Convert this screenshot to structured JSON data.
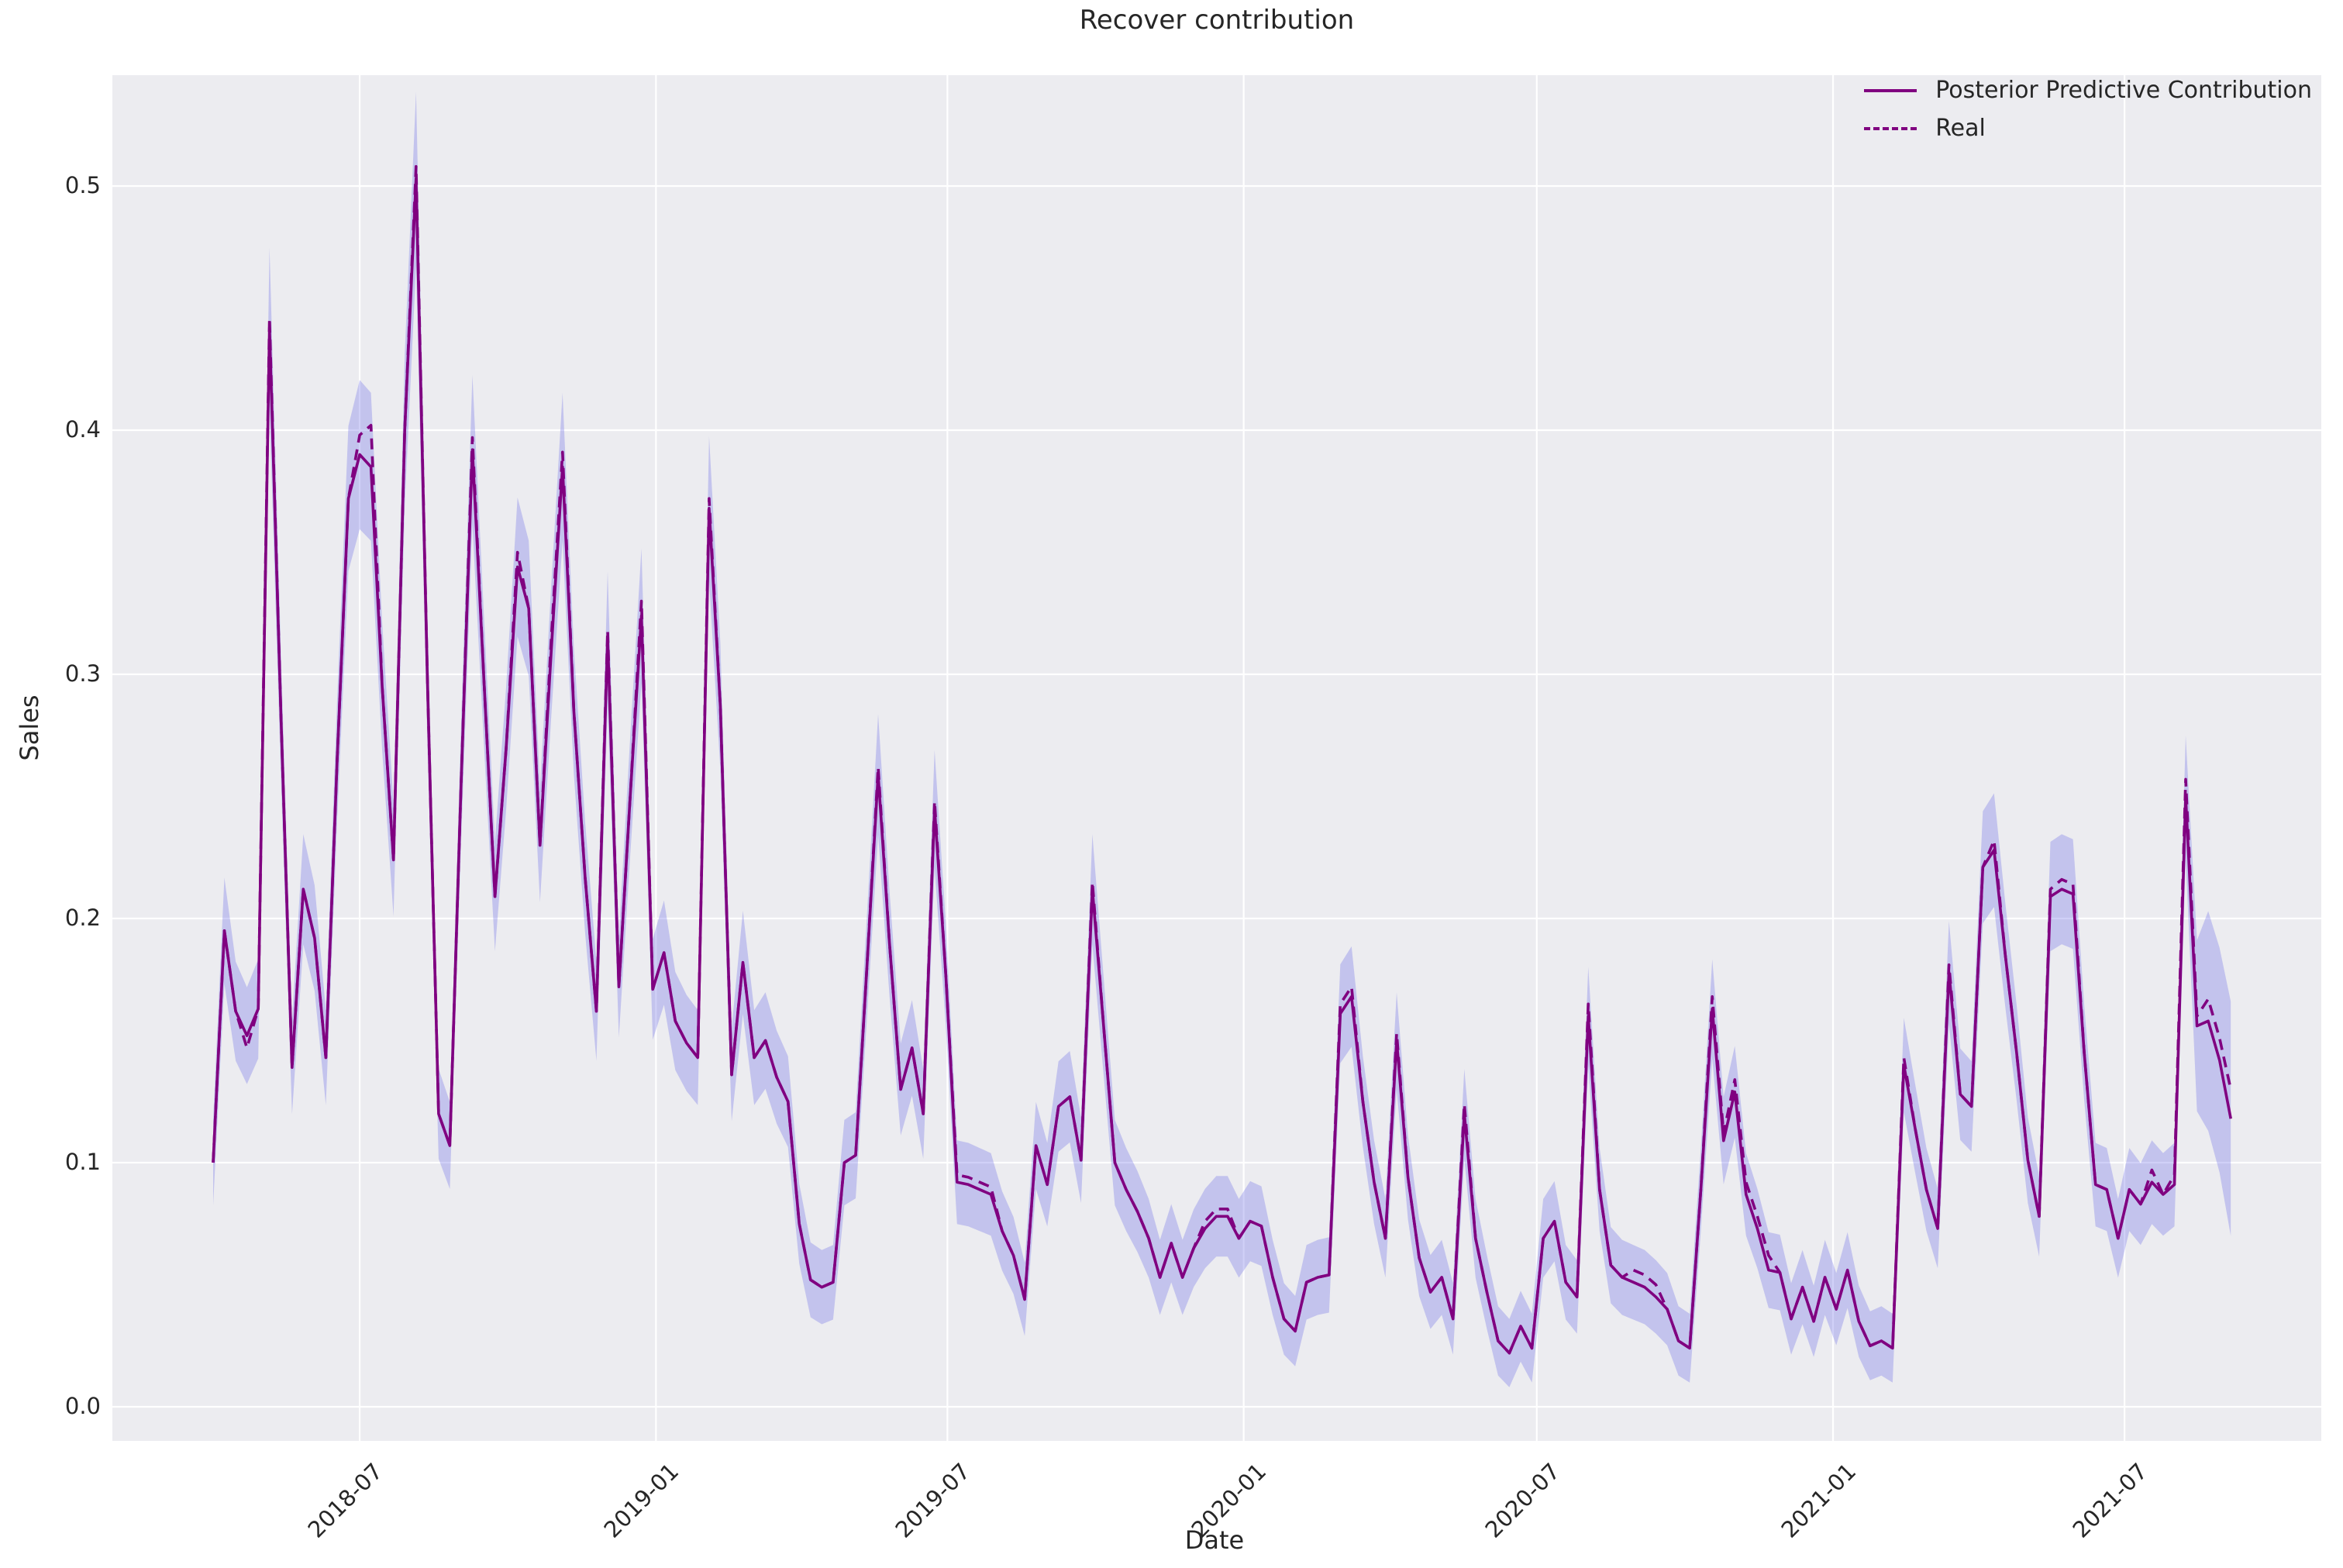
{
  "chart_data": {
    "type": "line",
    "title": "Recover contribution",
    "xlabel": "Date",
    "ylabel": "Sales",
    "grid": true,
    "legend_position": "upper right",
    "y_ticks": [
      0.0,
      0.1,
      0.2,
      0.3,
      0.4,
      0.5
    ],
    "ylim": [
      -0.015,
      0.545
    ],
    "x_tick_labels": [
      "2018-07",
      "2019-01",
      "2019-07",
      "2020-01",
      "2020-07",
      "2021-01",
      "2021-07"
    ],
    "x_tick_dates": [
      "2018-07-01",
      "2019-01-01",
      "2019-07-01",
      "2020-01-01",
      "2020-07-01",
      "2021-01-01",
      "2021-07-01"
    ],
    "colors": {
      "line": "#800080",
      "band_fill": "#6e6ee6",
      "band_opacity": 0.32,
      "plot_background": "#ececf0",
      "gridline": "#ffffff",
      "text": "#262626"
    },
    "dates": [
      "2018-04-01",
      "2018-04-08",
      "2018-04-15",
      "2018-04-22",
      "2018-04-29",
      "2018-05-06",
      "2018-05-13",
      "2018-05-20",
      "2018-05-27",
      "2018-06-03",
      "2018-06-10",
      "2018-06-17",
      "2018-06-24",
      "2018-07-01",
      "2018-07-08",
      "2018-07-15",
      "2018-07-22",
      "2018-07-29",
      "2018-08-05",
      "2018-08-12",
      "2018-08-19",
      "2018-08-26",
      "2018-09-02",
      "2018-09-09",
      "2018-09-16",
      "2018-09-23",
      "2018-09-30",
      "2018-10-07",
      "2018-10-14",
      "2018-10-21",
      "2018-10-28",
      "2018-11-04",
      "2018-11-11",
      "2018-11-18",
      "2018-11-25",
      "2018-12-02",
      "2018-12-09",
      "2018-12-16",
      "2018-12-23",
      "2018-12-30",
      "2019-01-06",
      "2019-01-13",
      "2019-01-20",
      "2019-01-27",
      "2019-02-03",
      "2019-02-10",
      "2019-02-17",
      "2019-02-24",
      "2019-03-03",
      "2019-03-10",
      "2019-03-17",
      "2019-03-24",
      "2019-03-31",
      "2019-04-07",
      "2019-04-14",
      "2019-04-21",
      "2019-04-28",
      "2019-05-05",
      "2019-05-12",
      "2019-05-19",
      "2019-05-26",
      "2019-06-02",
      "2019-06-09",
      "2019-06-16",
      "2019-06-23",
      "2019-06-30",
      "2019-07-07",
      "2019-07-14",
      "2019-07-21",
      "2019-07-28",
      "2019-08-04",
      "2019-08-11",
      "2019-08-18",
      "2019-08-25",
      "2019-09-01",
      "2019-09-08",
      "2019-09-15",
      "2019-09-22",
      "2019-09-29",
      "2019-10-06",
      "2019-10-13",
      "2019-10-20",
      "2019-10-27",
      "2019-11-03",
      "2019-11-10",
      "2019-11-17",
      "2019-11-24",
      "2019-12-01",
      "2019-12-08",
      "2019-12-15",
      "2019-12-22",
      "2019-12-29",
      "2020-01-05",
      "2020-01-12",
      "2020-01-19",
      "2020-01-26",
      "2020-02-02",
      "2020-02-09",
      "2020-02-16",
      "2020-02-23",
      "2020-03-01",
      "2020-03-08",
      "2020-03-15",
      "2020-03-22",
      "2020-03-29",
      "2020-04-05",
      "2020-04-12",
      "2020-04-19",
      "2020-04-26",
      "2020-05-03",
      "2020-05-10",
      "2020-05-17",
      "2020-05-24",
      "2020-05-31",
      "2020-06-07",
      "2020-06-14",
      "2020-06-21",
      "2020-06-28",
      "2020-07-05",
      "2020-07-12",
      "2020-07-19",
      "2020-07-26",
      "2020-08-02",
      "2020-08-09",
      "2020-08-16",
      "2020-08-23",
      "2020-08-30",
      "2020-09-06",
      "2020-09-13",
      "2020-09-20",
      "2020-09-27",
      "2020-10-04",
      "2020-10-11",
      "2020-10-18",
      "2020-10-25",
      "2020-11-01",
      "2020-11-08",
      "2020-11-15",
      "2020-11-22",
      "2020-11-29",
      "2020-12-06",
      "2020-12-13",
      "2020-12-20",
      "2020-12-27",
      "2021-01-03",
      "2021-01-10",
      "2021-01-17",
      "2021-01-24",
      "2021-01-31",
      "2021-02-07",
      "2021-02-14",
      "2021-02-21",
      "2021-02-28",
      "2021-03-07",
      "2021-03-14",
      "2021-03-21",
      "2021-03-28",
      "2021-04-04",
      "2021-04-11",
      "2021-04-18",
      "2021-04-25",
      "2021-05-02",
      "2021-05-09",
      "2021-05-16",
      "2021-05-23",
      "2021-05-30",
      "2021-06-06",
      "2021-06-13",
      "2021-06-20",
      "2021-06-27",
      "2021-07-04",
      "2021-07-11",
      "2021-07-18",
      "2021-07-25",
      "2021-08-01",
      "2021-08-08",
      "2021-08-15",
      "2021-08-22",
      "2021-08-29",
      "2021-09-05"
    ],
    "series": [
      {
        "name": "Posterior Predictive Contribution",
        "style": "solid",
        "values": [
          0.1,
          0.195,
          0.162,
          0.152,
          0.163,
          0.442,
          0.285,
          0.139,
          0.212,
          0.192,
          0.143,
          0.265,
          0.372,
          0.39,
          0.385,
          0.295,
          0.224,
          0.4,
          0.503,
          0.3,
          0.12,
          0.107,
          0.255,
          0.392,
          0.3,
          0.209,
          0.27,
          0.344,
          0.327,
          0.23,
          0.31,
          0.385,
          0.285,
          0.217,
          0.162,
          0.315,
          0.172,
          0.25,
          0.324,
          0.171,
          0.186,
          0.158,
          0.149,
          0.143,
          0.368,
          0.287,
          0.136,
          0.182,
          0.143,
          0.15,
          0.135,
          0.125,
          0.075,
          0.052,
          0.049,
          0.051,
          0.1,
          0.103,
          0.18,
          0.259,
          0.19,
          0.13,
          0.147,
          0.12,
          0.245,
          0.177,
          0.092,
          0.091,
          0.089,
          0.087,
          0.072,
          0.062,
          0.044,
          0.107,
          0.091,
          0.123,
          0.127,
          0.101,
          0.212,
          0.156,
          0.1,
          0.089,
          0.08,
          0.069,
          0.053,
          0.067,
          0.053,
          0.065,
          0.073,
          0.078,
          0.078,
          0.069,
          0.076,
          0.074,
          0.053,
          0.036,
          0.031,
          0.051,
          0.053,
          0.054,
          0.161,
          0.168,
          0.125,
          0.092,
          0.069,
          0.15,
          0.094,
          0.061,
          0.047,
          0.053,
          0.036,
          0.12,
          0.069,
          0.047,
          0.027,
          0.022,
          0.033,
          0.024,
          0.069,
          0.076,
          0.051,
          0.045,
          0.16,
          0.089,
          0.058,
          0.053,
          0.051,
          0.049,
          0.045,
          0.04,
          0.027,
          0.024,
          0.09,
          0.163,
          0.109,
          0.129,
          0.087,
          0.073,
          0.056,
          0.055,
          0.036,
          0.049,
          0.035,
          0.053,
          0.04,
          0.056,
          0.035,
          0.025,
          0.027,
          0.024,
          0.14,
          0.114,
          0.089,
          0.073,
          0.178,
          0.128,
          0.123,
          0.221,
          0.228,
          0.185,
          0.145,
          0.101,
          0.078,
          0.209,
          0.212,
          0.21,
          0.145,
          0.091,
          0.089,
          0.069,
          0.089,
          0.083,
          0.092,
          0.087,
          0.091,
          0.25,
          0.156,
          0.158,
          0.142,
          0.118
        ]
      },
      {
        "name": "Real",
        "style": "dashed",
        "values": [
          0.1,
          0.195,
          0.162,
          0.147,
          0.163,
          0.446,
          0.285,
          0.139,
          0.212,
          0.192,
          0.143,
          0.265,
          0.372,
          0.398,
          0.402,
          0.295,
          0.224,
          0.4,
          0.508,
          0.3,
          0.12,
          0.107,
          0.255,
          0.397,
          0.3,
          0.209,
          0.27,
          0.35,
          0.327,
          0.23,
          0.315,
          0.391,
          0.285,
          0.217,
          0.162,
          0.318,
          0.172,
          0.25,
          0.33,
          0.171,
          0.186,
          0.158,
          0.149,
          0.143,
          0.372,
          0.287,
          0.136,
          0.182,
          0.143,
          0.15,
          0.135,
          0.125,
          0.075,
          0.052,
          0.049,
          0.051,
          0.1,
          0.103,
          0.18,
          0.262,
          0.19,
          0.13,
          0.147,
          0.12,
          0.248,
          0.177,
          0.095,
          0.094,
          0.092,
          0.09,
          0.072,
          0.062,
          0.044,
          0.107,
          0.091,
          0.123,
          0.127,
          0.101,
          0.215,
          0.156,
          0.1,
          0.089,
          0.08,
          0.069,
          0.053,
          0.067,
          0.053,
          0.065,
          0.076,
          0.081,
          0.081,
          0.069,
          0.076,
          0.074,
          0.053,
          0.036,
          0.031,
          0.051,
          0.053,
          0.054,
          0.165,
          0.172,
          0.125,
          0.092,
          0.069,
          0.153,
          0.094,
          0.061,
          0.047,
          0.053,
          0.036,
          0.124,
          0.069,
          0.047,
          0.027,
          0.022,
          0.033,
          0.024,
          0.069,
          0.076,
          0.051,
          0.045,
          0.165,
          0.089,
          0.058,
          0.053,
          0.056,
          0.054,
          0.05,
          0.04,
          0.027,
          0.024,
          0.09,
          0.168,
          0.112,
          0.134,
          0.092,
          0.078,
          0.062,
          0.055,
          0.036,
          0.049,
          0.035,
          0.053,
          0.04,
          0.056,
          0.035,
          0.025,
          0.027,
          0.024,
          0.143,
          0.114,
          0.089,
          0.073,
          0.181,
          0.128,
          0.123,
          0.221,
          0.232,
          0.185,
          0.145,
          0.101,
          0.078,
          0.212,
          0.216,
          0.214,
          0.145,
          0.091,
          0.089,
          0.069,
          0.089,
          0.083,
          0.097,
          0.087,
          0.095,
          0.257,
          0.16,
          0.167,
          0.151,
          0.13
        ]
      }
    ],
    "band": {
      "name": "posterior-credible-interval",
      "around": "Posterior Predictive Contribution",
      "halfwidth_base": 0.013,
      "halfwidth_slope": 0.045,
      "halfwidth_overrides": {
        "175": 0.025,
        "176": 0.035,
        "177": 0.045,
        "178": 0.046,
        "179": 0.048
      }
    }
  },
  "legend": {
    "items": [
      {
        "label": "Posterior Predictive Contribution",
        "style": "solid"
      },
      {
        "label": "Real",
        "style": "dashed"
      }
    ]
  }
}
